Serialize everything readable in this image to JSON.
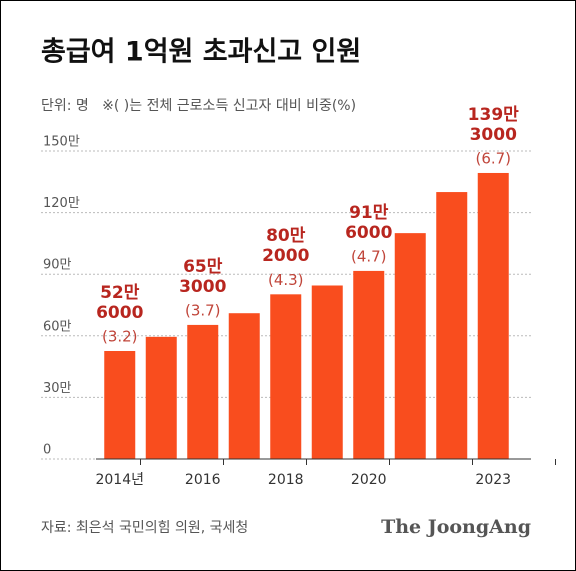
{
  "chart_data": {
    "type": "bar",
    "title": "총급여 1억원 초과신고 인원",
    "subtitle": "단위: 명   ※( )는 전체 근로소득 신고자 대비 비중(%)",
    "categories": [
      "2014년",
      null,
      "2016",
      null,
      "2018",
      null,
      "2020",
      null,
      null,
      "2023"
    ],
    "values": [
      526000,
      595000,
      653000,
      710000,
      802000,
      845000,
      916000,
      1100000,
      1300000,
      1393000
    ],
    "value_labels": [
      "52만 6000",
      null,
      "65만 3000",
      null,
      "80만 2000",
      null,
      "91만 6000",
      null,
      null,
      "139만 3000"
    ],
    "shares": [
      3.2,
      null,
      3.7,
      null,
      4.3,
      null,
      4.7,
      null,
      null,
      6.7
    ],
    "share_labels": [
      "(3.2)",
      null,
      "(3.7)",
      null,
      "(4.3)",
      null,
      "(4.7)",
      null,
      null,
      "(6.7)"
    ],
    "color": "#f94d1e",
    "ylim": [
      0,
      1500000
    ],
    "yticks": [
      0,
      {
        "value": 300000,
        "label": "30만"
      },
      {
        "value": 600000,
        "label": "60만"
      },
      {
        "value": 900000,
        "label": "90만"
      },
      {
        "value": 1200000,
        "label": "120만"
      },
      {
        "value": 1500000,
        "label": "150만"
      }
    ],
    "grid": true,
    "source": "자료: 최은석 국민의힘 의원, 국세청",
    "brand": "The JoongAng"
  }
}
